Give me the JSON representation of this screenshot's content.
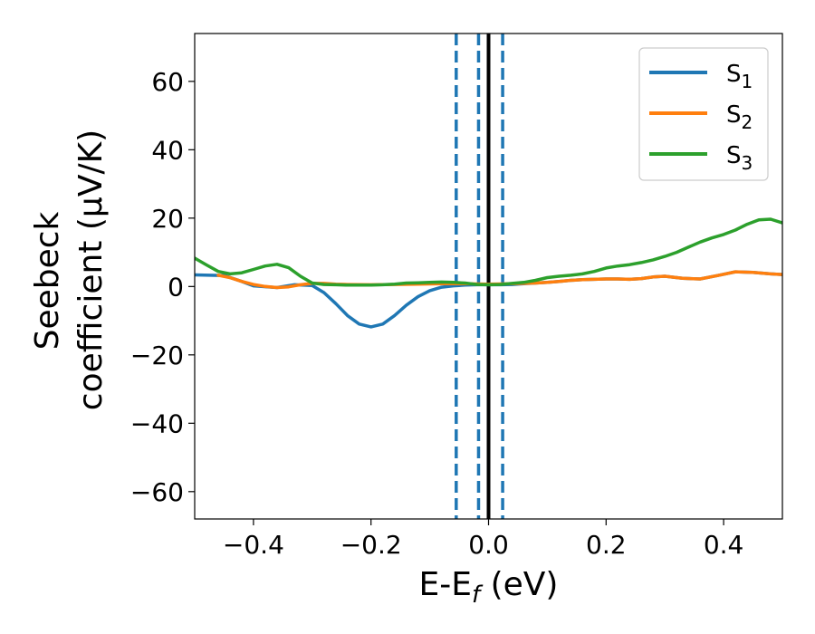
{
  "chart_data": {
    "type": "line",
    "xlabel_main": "E-E",
    "xlabel_sub": "f",
    "xlabel_unit": " (eV)",
    "ylabel_line1": "Seebeck",
    "ylabel_line2": "coefficient  (μV/K)",
    "xlim": [
      -0.5,
      0.5
    ],
    "ylim": [
      -68,
      74
    ],
    "xticks": [
      -0.4,
      -0.2,
      0.0,
      0.2,
      0.4
    ],
    "xtick_labels": [
      "−0.4",
      "−0.2",
      "0.0",
      "0.2",
      "0.4"
    ],
    "yticks": [
      -60,
      -40,
      -20,
      0,
      20,
      40,
      60
    ],
    "ytick_labels": [
      "−60",
      "−40",
      "−20",
      "0",
      "20",
      "40",
      "60"
    ],
    "grid": false,
    "legend_position": "top-right",
    "series": [
      {
        "name": "S",
        "subscript": "1",
        "color": "#1f77b4",
        "x": [
          -0.5,
          -0.45,
          -0.42,
          -0.4,
          -0.36,
          -0.33,
          -0.3,
          -0.28,
          -0.26,
          -0.24,
          -0.22,
          -0.2,
          -0.18,
          -0.16,
          -0.14,
          -0.12,
          -0.1,
          -0.08,
          -0.06,
          -0.04,
          -0.02,
          0.0,
          0.02,
          0.04,
          0.06,
          0.08,
          0.1,
          0.12,
          0.14,
          0.16,
          0.18,
          0.2,
          0.22,
          0.24,
          0.26,
          0.28,
          0.3,
          0.33,
          0.36,
          0.39,
          0.42,
          0.45,
          0.48,
          0.5
        ],
        "y": [
          3.4,
          3.2,
          1.5,
          0.2,
          -0.3,
          0.5,
          0.3,
          -1.8,
          -5.0,
          -8.5,
          -11.0,
          -11.8,
          -11.0,
          -8.5,
          -5.5,
          -3.0,
          -1.2,
          -0.2,
          0.2,
          0.4,
          0.5,
          0.5,
          0.5,
          0.6,
          0.8,
          1.0,
          1.2,
          1.5,
          1.8,
          2.0,
          2.1,
          2.2,
          2.2,
          2.1,
          2.3,
          2.8,
          3.0,
          2.4,
          2.2,
          3.2,
          4.3,
          4.1,
          3.7,
          3.5
        ]
      },
      {
        "name": "S",
        "subscript": "2",
        "color": "#ff7f0e",
        "x": [
          -0.46,
          -0.44,
          -0.42,
          -0.4,
          -0.38,
          -0.36,
          -0.34,
          -0.32,
          -0.3,
          -0.28,
          -0.26,
          -0.24,
          -0.2,
          -0.16,
          -0.12,
          -0.08,
          -0.04,
          0.0,
          0.04,
          0.08,
          0.1,
          0.12,
          0.14,
          0.16,
          0.18,
          0.2,
          0.22,
          0.24,
          0.26,
          0.28,
          0.3,
          0.33,
          0.36,
          0.39,
          0.42,
          0.45,
          0.48,
          0.5
        ],
        "y": [
          3.3,
          2.6,
          1.5,
          0.6,
          0.0,
          -0.3,
          -0.1,
          0.5,
          0.9,
          0.9,
          0.7,
          0.6,
          0.5,
          0.6,
          0.7,
          0.8,
          0.8,
          0.7,
          0.8,
          1.0,
          1.2,
          1.5,
          1.8,
          2.0,
          2.1,
          2.2,
          2.2,
          2.1,
          2.3,
          2.8,
          3.0,
          2.4,
          2.2,
          3.2,
          4.3,
          4.1,
          3.7,
          3.5
        ]
      },
      {
        "name": "S",
        "subscript": "3",
        "color": "#2ca02c",
        "x": [
          -0.5,
          -0.48,
          -0.46,
          -0.44,
          -0.42,
          -0.4,
          -0.38,
          -0.36,
          -0.34,
          -0.32,
          -0.3,
          -0.28,
          -0.26,
          -0.24,
          -0.22,
          -0.2,
          -0.18,
          -0.16,
          -0.14,
          -0.12,
          -0.1,
          -0.08,
          -0.06,
          -0.04,
          -0.02,
          0.0,
          0.02,
          0.04,
          0.06,
          0.08,
          0.1,
          0.12,
          0.14,
          0.16,
          0.18,
          0.2,
          0.22,
          0.24,
          0.26,
          0.28,
          0.3,
          0.32,
          0.34,
          0.36,
          0.38,
          0.4,
          0.42,
          0.44,
          0.46,
          0.48,
          0.5
        ],
        "y": [
          8.3,
          6.3,
          4.4,
          3.7,
          4.0,
          5.0,
          6.0,
          6.5,
          5.5,
          3.0,
          1.0,
          0.6,
          0.5,
          0.4,
          0.4,
          0.4,
          0.5,
          0.7,
          1.0,
          1.1,
          1.2,
          1.3,
          1.2,
          1.0,
          0.6,
          0.5,
          0.6,
          0.9,
          1.2,
          1.8,
          2.6,
          3.0,
          3.3,
          3.7,
          4.4,
          5.4,
          6.0,
          6.4,
          7.0,
          7.8,
          8.8,
          10.0,
          11.5,
          13.0,
          14.2,
          15.2,
          16.5,
          18.2,
          19.5,
          19.7,
          18.6
        ]
      }
    ],
    "vlines": [
      {
        "x": 0.0,
        "color": "#000000",
        "style": "solid"
      },
      {
        "x": -0.055,
        "color": "#1f77b4",
        "style": "dashed"
      },
      {
        "x": -0.017,
        "color": "#1f77b4",
        "style": "dashed"
      },
      {
        "x": 0.024,
        "color": "#1f77b4",
        "style": "dashed"
      }
    ]
  }
}
